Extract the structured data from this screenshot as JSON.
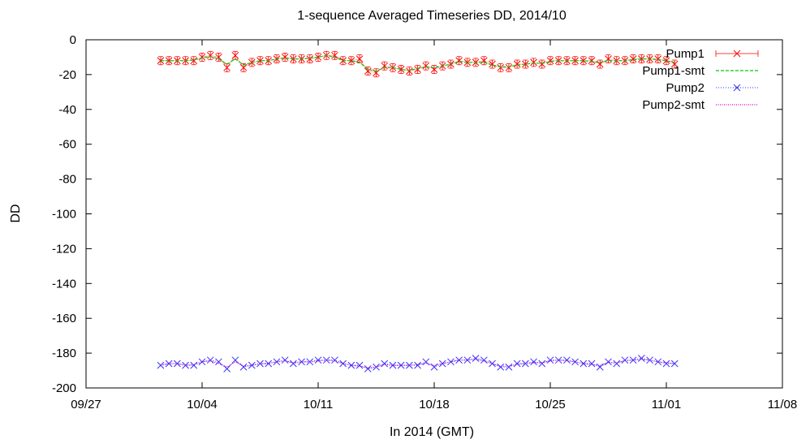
{
  "chart_data": {
    "type": "line",
    "title": "1-sequence Averaged Timeseries DD, 2014/10",
    "xlabel": "In 2014 (GMT)",
    "ylabel": "DD",
    "x_range_days": [
      0,
      42
    ],
    "ylim": [
      -200,
      0
    ],
    "x_ticks": [
      {
        "day": 0,
        "label": "09/27"
      },
      {
        "day": 7,
        "label": "10/04"
      },
      {
        "day": 14,
        "label": "10/11"
      },
      {
        "day": 21,
        "label": "10/18"
      },
      {
        "day": 28,
        "label": "10/25"
      },
      {
        "day": 35,
        "label": "11/01"
      },
      {
        "day": 42,
        "label": "11/08"
      }
    ],
    "y_ticks": [
      0,
      -20,
      -40,
      -60,
      -80,
      -100,
      -120,
      -140,
      -160,
      -180,
      -200
    ],
    "grid": false,
    "legend_position": "top-right",
    "x_days": [
      4.5,
      5,
      5.5,
      6,
      6.5,
      7,
      7.5,
      8,
      8.5,
      9,
      9.5,
      10,
      10.5,
      11,
      11.5,
      12,
      12.5,
      13,
      13.5,
      14,
      14.5,
      15,
      15.5,
      16,
      16.5,
      17,
      17.5,
      18,
      18.5,
      19,
      19.5,
      20,
      20.5,
      21,
      21.5,
      22,
      22.5,
      23,
      23.5,
      24,
      24.5,
      25,
      25.5,
      26,
      26.5,
      27,
      27.5,
      28,
      28.5,
      29,
      29.5,
      30,
      30.5,
      31,
      31.5,
      32,
      32.5,
      33,
      33.5,
      34,
      34.5,
      35,
      35.5
    ],
    "series": [
      {
        "name": "Pump1",
        "style": "points-errorbars",
        "color": "#ff0000",
        "values": [
          -12,
          -12,
          -12,
          -12,
          -12,
          -10,
          -9,
          -10,
          -16,
          -9,
          -16,
          -13,
          -12,
          -12,
          -11,
          -10,
          -11,
          -11,
          -11,
          -10,
          -9,
          -9,
          -12,
          -12,
          -11,
          -18,
          -19,
          -15,
          -16,
          -17,
          -18,
          -17,
          -15,
          -17,
          -15,
          -14,
          -12,
          -13,
          -13,
          -12,
          -14,
          -16,
          -16,
          -14,
          -14,
          -13,
          -14,
          -12,
          -12,
          -12,
          -12,
          -12,
          -12,
          -14,
          -11,
          -12,
          -12,
          -11,
          -11,
          -11,
          -11,
          -12,
          -14
        ]
      },
      {
        "name": "Pump1-smt",
        "style": "dashed-line",
        "color": "#00cc00",
        "values": [
          -12,
          -12,
          -12,
          -12,
          -11.5,
          -10.5,
          -9.5,
          -11,
          -14,
          -11,
          -14.5,
          -13,
          -12,
          -12,
          -11,
          -10.5,
          -11,
          -11,
          -10.5,
          -10,
          -9,
          -10,
          -12,
          -12,
          -13,
          -17,
          -18,
          -16,
          -16,
          -17,
          -17.5,
          -16.5,
          -15.5,
          -16,
          -15,
          -14,
          -12.5,
          -13,
          -13,
          -13,
          -14.5,
          -15.5,
          -15.5,
          -14.5,
          -14,
          -13.5,
          -13.5,
          -12.5,
          -12,
          -12,
          -12,
          -12,
          -12.5,
          -13,
          -12,
          -12,
          -12,
          -11.5,
          -11,
          -11,
          -11.5,
          -12,
          -13
        ]
      },
      {
        "name": "Pump2",
        "style": "points-dotted",
        "color": "#3333ff",
        "values": [
          -187,
          -186,
          -186,
          -187,
          -187,
          -185,
          -184,
          -185,
          -189,
          -184,
          -188,
          -187,
          -186,
          -186,
          -185,
          -184,
          -186,
          -185,
          -185,
          -184,
          -184,
          -184,
          -186,
          -187,
          -187,
          -189,
          -188,
          -186,
          -187,
          -187,
          -187,
          -187,
          -185,
          -188,
          -186,
          -185,
          -184,
          -184,
          -183,
          -184,
          -186,
          -188,
          -188,
          -186,
          -186,
          -185,
          -186,
          -184,
          -184,
          -184,
          -185,
          -186,
          -186,
          -188,
          -185,
          -186,
          -184,
          -184,
          -183,
          -184,
          -185,
          -186,
          -186
        ]
      },
      {
        "name": "Pump2-smt",
        "style": "dotted-line",
        "color": "#cc00cc",
        "values": [
          -187,
          -186,
          -186,
          -187,
          -186.5,
          -185,
          -184.5,
          -186,
          -188,
          -185,
          -187.5,
          -187,
          -186,
          -186,
          -185,
          -184.5,
          -185.5,
          -185,
          -185,
          -184.5,
          -184,
          -184.5,
          -186,
          -187,
          -187.5,
          -188.5,
          -188,
          -186.5,
          -187,
          -187,
          -187,
          -186.5,
          -186,
          -187,
          -186,
          -185,
          -184,
          -184,
          -183.5,
          -184.5,
          -186,
          -187.5,
          -187.5,
          -186.5,
          -186,
          -185.5,
          -185.5,
          -184.5,
          -184,
          -184.5,
          -185,
          -186,
          -186.5,
          -187,
          -185.5,
          -185.5,
          -184.5,
          -184,
          -183.5,
          -184,
          -185,
          -185.5,
          -186
        ]
      }
    ]
  }
}
